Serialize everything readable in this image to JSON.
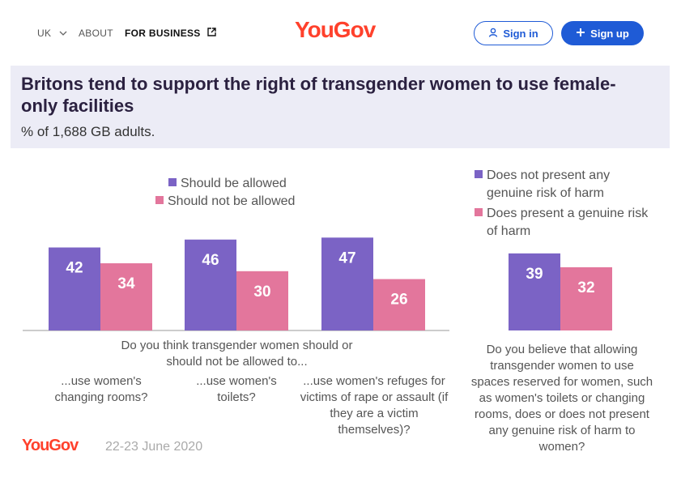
{
  "nav": {
    "region": "UK",
    "about": "ABOUT",
    "business": "FOR BUSINESS",
    "logo": "YouGov",
    "sign_in": "Sign in",
    "sign_up": "Sign up"
  },
  "header": {
    "title": "Britons tend to support the right of transgender women to use female-only facilities",
    "subtitle": "% of 1,688 GB adults."
  },
  "footer": {
    "logo": "YouGov",
    "date": "22-23 June 2020"
  },
  "colors": {
    "purple": "#7b63c5",
    "pink": "#e3769c",
    "brand": "#ff412c",
    "button_blue": "#1f5bd6"
  },
  "chart_data": [
    {
      "type": "bar",
      "question": "Do you think transgender women should or should not be allowed to...",
      "categories": [
        "...use women's changing rooms?",
        "...use women's toilets?",
        "...use women's refuges for victims of rape or assault (if they are a victim themselves)?"
      ],
      "series": [
        {
          "name": "Should be allowed",
          "values": [
            42,
            46,
            47
          ]
        },
        {
          "name": "Should not be allowed",
          "values": [
            34,
            30,
            26
          ]
        }
      ]
    },
    {
      "type": "bar",
      "question": "Do you believe that allowing transgender women to use spaces reserved for women, such as women's toilets or changing rooms, does or does not present any genuine risk of harm to women?",
      "categories": [
        ""
      ],
      "series": [
        {
          "name": "Does not present any genuine risk of harm",
          "values": [
            39
          ]
        },
        {
          "name": "Does present a genuine risk of harm",
          "values": [
            32
          ]
        }
      ]
    }
  ]
}
